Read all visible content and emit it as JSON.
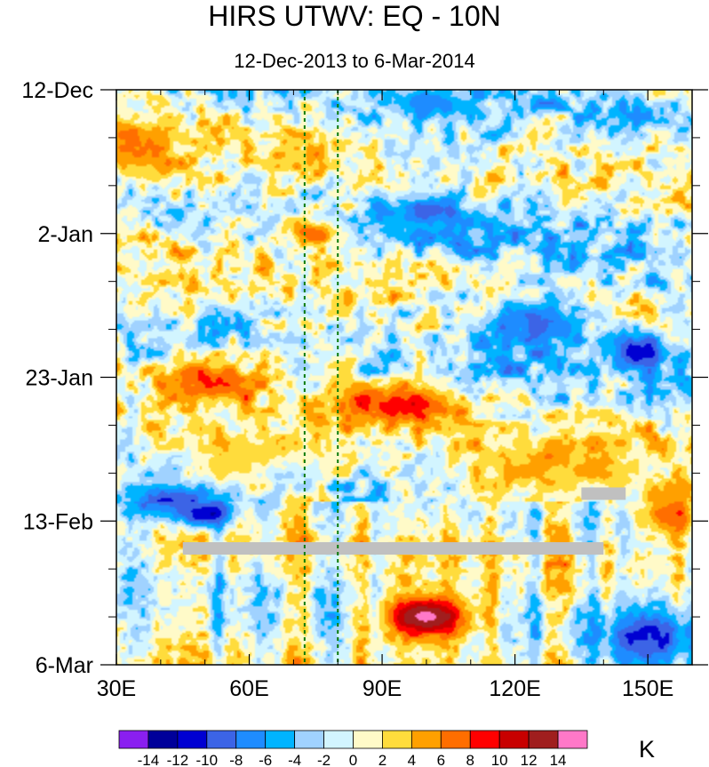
{
  "chart_data": {
    "type": "heatmap",
    "title": "HIRS UTWV: EQ - 10N",
    "subtitle": "12-Dec-2013 to 6-Mar-2014",
    "x_axis": {
      "range": [
        30,
        160
      ],
      "ticks": [
        30,
        60,
        90,
        120,
        150
      ],
      "tick_labels": [
        "30E",
        "60E",
        "90E",
        "120E",
        "150E"
      ]
    },
    "y_axis": {
      "range_days": [
        0,
        84
      ],
      "ticks": [
        0,
        21,
        42,
        63,
        84
      ],
      "tick_labels": [
        "12-Dec",
        "2-Jan",
        "23-Jan",
        "13-Feb",
        "6-Mar"
      ],
      "direction": "time increases downward"
    },
    "reference_lines_lon": [
      72.5,
      80
    ],
    "missing_data_bars": [
      {
        "lon_start": 45,
        "lon_end": 140,
        "day": 67
      },
      {
        "lon_start": 135,
        "lon_end": 145,
        "day": 59
      }
    ],
    "colorbar": {
      "unit": "K",
      "labels": [
        "-14",
        "-12",
        "-10",
        "-8",
        "-6",
        "-4",
        "-2",
        "0",
        "2",
        "4",
        "6",
        "8",
        "10",
        "12",
        "14"
      ],
      "colors": [
        "#8a1ff0",
        "#00009a",
        "#0000d2",
        "#3c64e6",
        "#1e8cff",
        "#00b4ff",
        "#a0d2ff",
        "#d2f5ff",
        "#fffac8",
        "#ffdc3c",
        "#ffa000",
        "#ff6e00",
        "#ff0000",
        "#c80000",
        "#a01e1e",
        "#ff78c8"
      ]
    },
    "anomaly_features": [
      {
        "lon": 100,
        "day": 77,
        "value": 16,
        "extent_lon": 6,
        "extent_days": 2
      },
      {
        "lon": 100,
        "day": 77,
        "value": 11,
        "extent_lon": 12,
        "extent_days": 4
      },
      {
        "lon": 93,
        "day": 46,
        "value": 10,
        "extent_lon": 14,
        "extent_days": 3
      },
      {
        "lon": 52,
        "day": 43,
        "value": 9,
        "extent_lon": 10,
        "extent_days": 3
      },
      {
        "lon": 35,
        "day": 9,
        "value": 6,
        "extent_lon": 10,
        "extent_days": 4
      },
      {
        "lon": 75,
        "day": 21,
        "value": 8,
        "extent_lon": 6,
        "extent_days": 2
      },
      {
        "lon": 50,
        "day": 62,
        "value": -13,
        "extent_lon": 6,
        "extent_days": 2
      },
      {
        "lon": 42,
        "day": 60,
        "value": -10,
        "extent_lon": 12,
        "extent_days": 3
      },
      {
        "lon": 148,
        "day": 38,
        "value": -11,
        "extent_lon": 8,
        "extent_days": 3
      },
      {
        "lon": 150,
        "day": 80,
        "value": -10,
        "extent_lon": 10,
        "extent_days": 4
      },
      {
        "lon": 125,
        "day": 34,
        "value": -8,
        "extent_lon": 10,
        "extent_days": 3
      },
      {
        "lon": 100,
        "day": 2,
        "value": -7,
        "extent_lon": 10,
        "extent_days": 3
      },
      {
        "lon": 155,
        "day": 62,
        "value": 9,
        "extent_lon": 8,
        "extent_days": 4
      },
      {
        "lon": 100,
        "day": 18,
        "value": -8,
        "extent_lon": 10,
        "extent_days": 3
      },
      {
        "lon": 130,
        "day": 55,
        "value": 5,
        "extent_lon": 25,
        "extent_days": 5
      },
      {
        "lon": 60,
        "day": 53,
        "value": 4,
        "extent_lon": 20,
        "extent_days": 4
      }
    ]
  }
}
